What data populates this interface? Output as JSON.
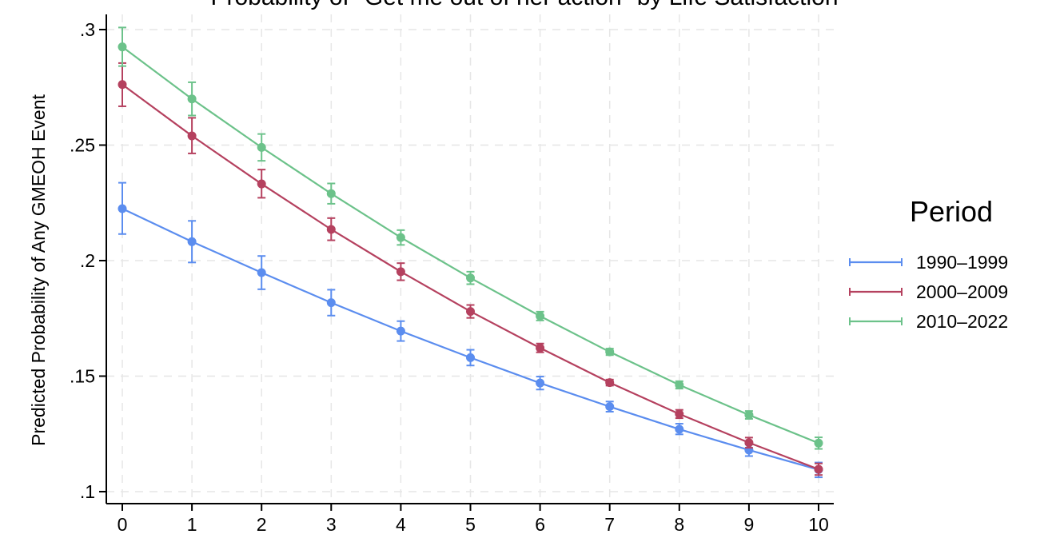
{
  "chart_data": {
    "type": "line",
    "title": "Probability of \"Get me out of her action\" by Life Satisfaction",
    "xlabel": "",
    "ylabel": "Predicted Probability of Any GMEOH Event",
    "x": [
      0,
      1,
      2,
      3,
      4,
      5,
      6,
      7,
      8,
      9,
      10
    ],
    "x_tick_labels": [
      "0",
      "1",
      "2",
      "3",
      "4",
      "5",
      "6",
      "7",
      "8",
      "9",
      "10"
    ],
    "xlim": [
      0,
      10
    ],
    "ylim": [
      0.1,
      0.3
    ],
    "y_ticks": [
      0.1,
      0.15,
      0.2,
      0.25,
      0.3
    ],
    "y_tick_labels": [
      ".1",
      ".15",
      ".2",
      ".25",
      ".3"
    ],
    "grid": true,
    "error_bars": true,
    "legend": {
      "title": "Period",
      "position": "right"
    },
    "series": [
      {
        "name": "1990–1999",
        "color": "#5b8def",
        "values": [
          0.2225,
          0.2082,
          0.1948,
          0.1818,
          0.1695,
          0.158,
          0.147,
          0.1368,
          0.127,
          0.118,
          0.1095
        ],
        "lower": [
          0.2115,
          0.1992,
          0.1876,
          0.1762,
          0.1652,
          0.1546,
          0.1442,
          0.1346,
          0.1248,
          0.1154,
          0.1062
        ],
        "upper": [
          0.2337,
          0.2172,
          0.202,
          0.1874,
          0.1738,
          0.1614,
          0.1498,
          0.139,
          0.1294,
          0.1204,
          0.1126
        ]
      },
      {
        "name": "2000–2009",
        "color": "#b5415f",
        "values": [
          0.2762,
          0.254,
          0.2332,
          0.2135,
          0.1952,
          0.178,
          0.1622,
          0.1472,
          0.1336,
          0.1212,
          0.1097
        ],
        "lower": [
          0.2668,
          0.2464,
          0.2272,
          0.2088,
          0.1915,
          0.1752,
          0.1603,
          0.1459,
          0.1318,
          0.119,
          0.1072
        ],
        "upper": [
          0.2855,
          0.2618,
          0.2394,
          0.2184,
          0.1989,
          0.1808,
          0.1641,
          0.1485,
          0.1354,
          0.1234,
          0.1122
        ]
      },
      {
        "name": "2010–2022",
        "color": "#6cc28a",
        "values": [
          0.2925,
          0.27,
          0.249,
          0.229,
          0.21,
          0.1925,
          0.176,
          0.1605,
          0.1462,
          0.1332,
          0.121
        ],
        "lower": [
          0.2842,
          0.2628,
          0.2432,
          0.2246,
          0.2068,
          0.1898,
          0.1741,
          0.1591,
          0.1446,
          0.1315,
          0.1185
        ],
        "upper": [
          0.3009,
          0.2772,
          0.2548,
          0.2334,
          0.2132,
          0.1952,
          0.1779,
          0.1619,
          0.1478,
          0.1349,
          0.1235
        ]
      }
    ]
  }
}
